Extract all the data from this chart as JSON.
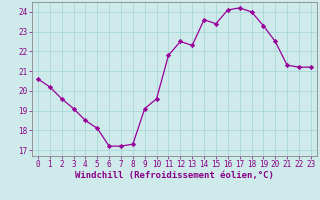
{
  "x": [
    0,
    1,
    2,
    3,
    4,
    5,
    6,
    7,
    8,
    9,
    10,
    11,
    12,
    13,
    14,
    15,
    16,
    17,
    18,
    19,
    20,
    21,
    22,
    23
  ],
  "y": [
    20.6,
    20.2,
    19.6,
    19.1,
    18.5,
    18.1,
    17.2,
    17.2,
    17.3,
    19.1,
    19.6,
    21.8,
    22.5,
    22.3,
    23.6,
    23.4,
    24.1,
    24.2,
    24.0,
    23.3,
    22.5,
    21.3,
    21.2,
    21.2
  ],
  "line_color": "#990099",
  "marker": "D",
  "markersize": 2.2,
  "linewidth": 0.9,
  "xlabel": "Windchill (Refroidissement éolien,°C)",
  "xlabel_fontsize": 6.5,
  "xlim": [
    -0.5,
    23.5
  ],
  "ylim": [
    16.7,
    24.5
  ],
  "yticks": [
    17,
    18,
    19,
    20,
    21,
    22,
    23,
    24
  ],
  "xticks": [
    0,
    1,
    2,
    3,
    4,
    5,
    6,
    7,
    8,
    9,
    10,
    11,
    12,
    13,
    14,
    15,
    16,
    17,
    18,
    19,
    20,
    21,
    22,
    23
  ],
  "bg_color": "#ceeaea",
  "grid_color": "#a8d8d8",
  "tick_color": "#880088",
  "tick_fontsize": 5.5,
  "spine_color": "#888888",
  "fig_width": 3.2,
  "fig_height": 2.0,
  "dpi": 100
}
